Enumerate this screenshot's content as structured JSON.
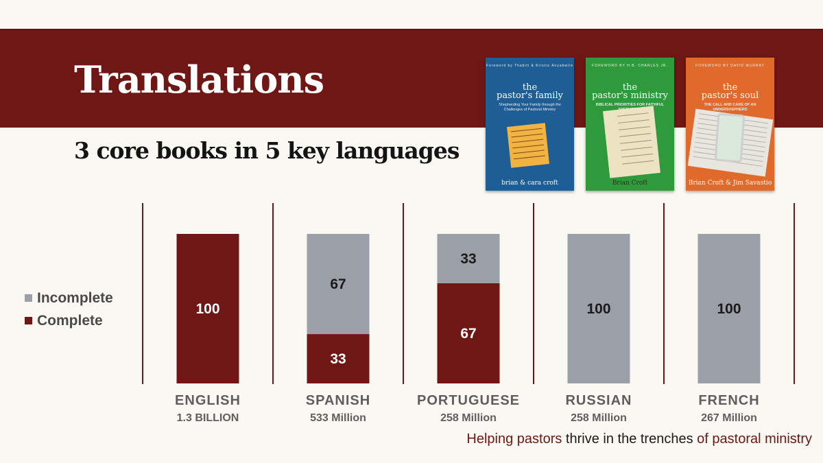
{
  "title": "Translations",
  "subtitle": "3 core books in 5 key languages",
  "colors": {
    "complete": "#6e1714",
    "incomplete": "#9b9fa8",
    "banner": "#6e1714",
    "background": "#faf8f2",
    "divider": "#6e1714"
  },
  "books": [
    {
      "foreword": "Foreword by Thabiti & Kristie Anyabwile",
      "title_line1": "the",
      "title_line2": "pastor's family",
      "subtitle": "Shepherding Your Family through the Challenges of Pastoral Ministry",
      "author": "brian & cara croft",
      "cover_color": "#1e5e95"
    },
    {
      "foreword": "FOREWORD BY H.B. CHARLES JR.",
      "title_line1": "the",
      "title_line2": "pastor's ministry",
      "subtitle": "BIBLICAL PRIORITIES FOR FAITHFUL SHEPHERDS",
      "author": "Brian Croft",
      "cover_color": "#2f9a3b"
    },
    {
      "foreword": "FOREWORD BY DAVID MURRAY",
      "title_line1": "the",
      "title_line2": "pastor's soul",
      "subtitle": "THE CALL AND CARE OF AN UNDERSHEPHERD",
      "author": "Brian Croft & Jim Savastio",
      "cover_color": "#e06a2b"
    }
  ],
  "legend": {
    "incomplete": "Incomplete",
    "complete": "Complete"
  },
  "chart_data": {
    "type": "bar",
    "stacked": true,
    "categories": [
      "ENGLISH",
      "SPANISH",
      "PORTUGUESE",
      "RUSSIAN",
      "FRENCH"
    ],
    "category_sublabels": [
      "1.3 BILLION",
      "533 Million",
      "258 Million",
      "258 Million",
      "267 Million"
    ],
    "series": [
      {
        "name": "Complete",
        "values": [
          100,
          33,
          67,
          0,
          0
        ],
        "color": "#6e1714"
      },
      {
        "name": "Incomplete",
        "values": [
          0,
          67,
          33,
          100,
          100
        ],
        "color": "#9b9fa8"
      }
    ],
    "ylim": [
      0,
      100
    ],
    "data_labels": true,
    "legend_position": "left",
    "grid": false
  },
  "tagline": {
    "part1": "Helping pastors",
    "part2": " thrive in the trenches ",
    "part3": "of pastoral ministry"
  }
}
